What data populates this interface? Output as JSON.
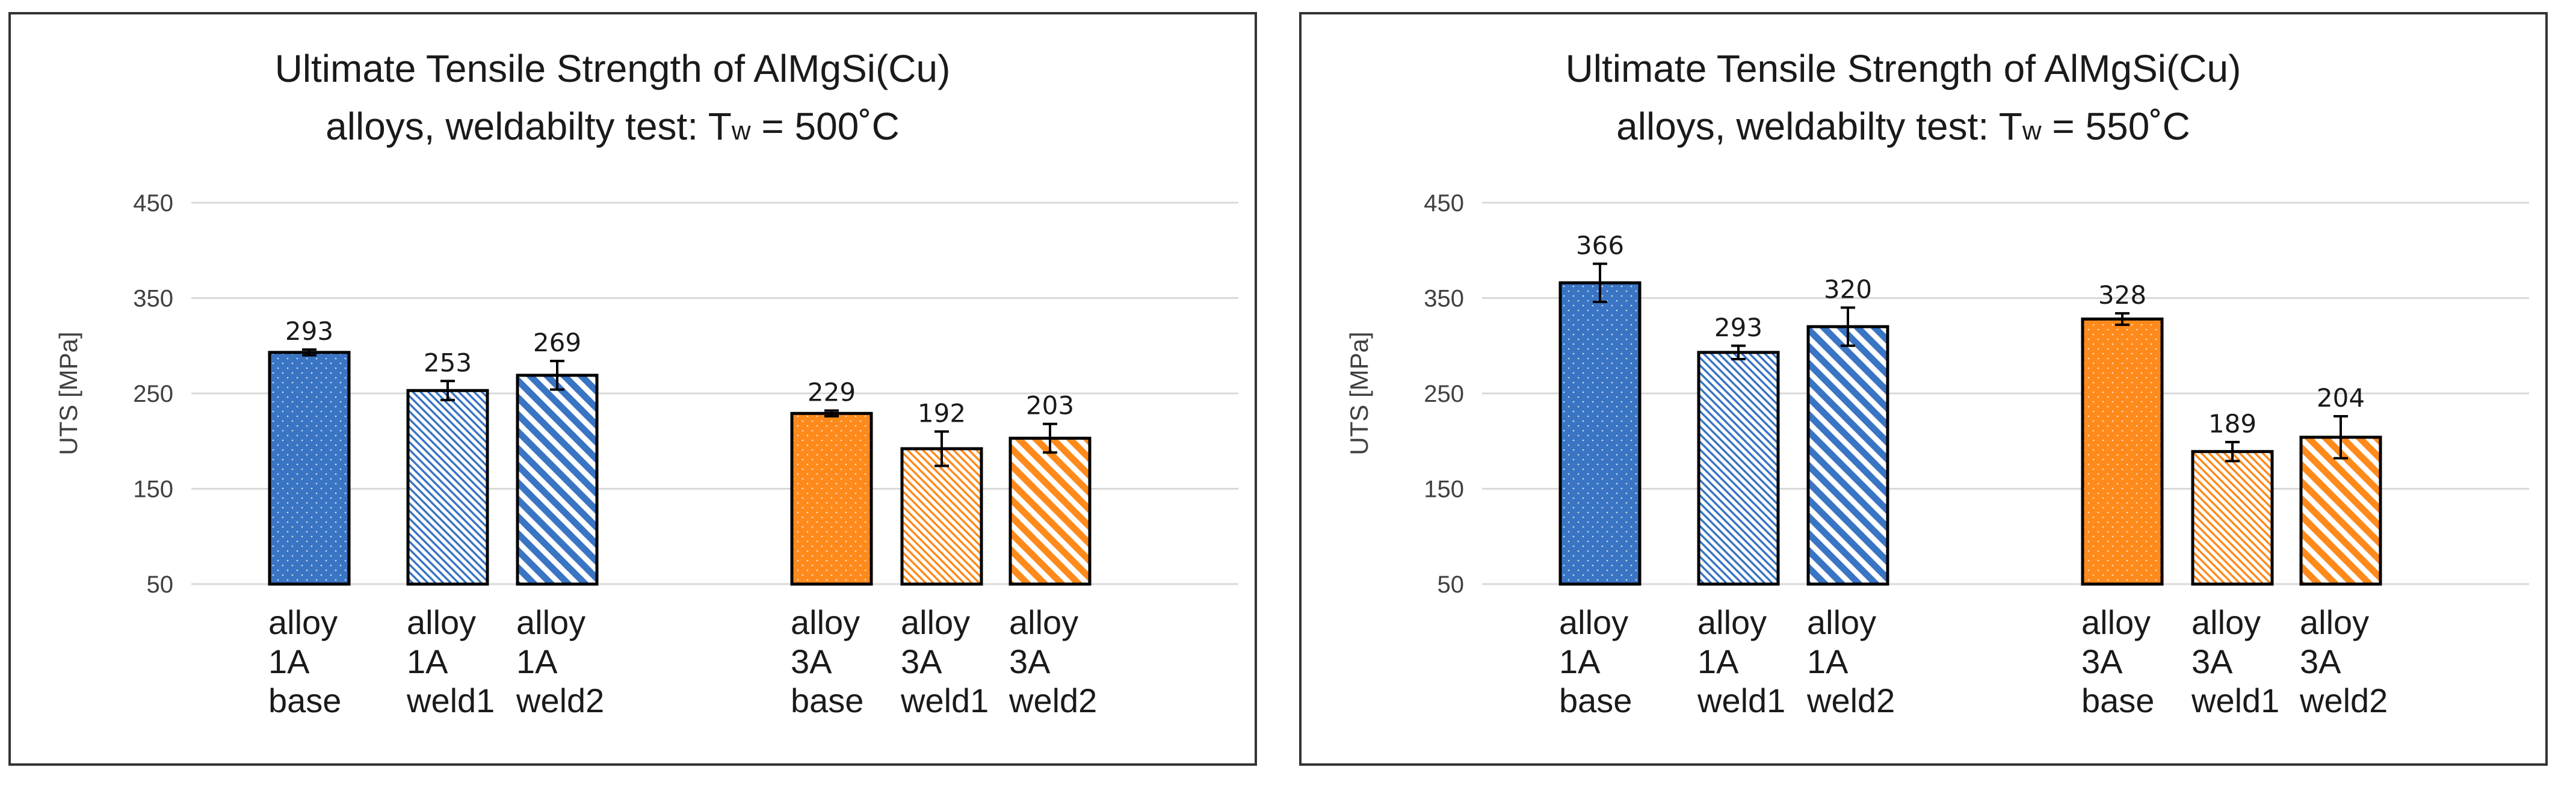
{
  "colors": {
    "blue": "#3a75c4",
    "orange": "#ff8a1c",
    "grid": "#d9d9d9",
    "edge": "#000000"
  },
  "chart_data": [
    {
      "type": "bar",
      "title_lines": [
        "Ultimate Tensile Strength of AlMgSi(Cu)",
        "alloys, weldabilty test: Tw = 500˚C"
      ],
      "title_line2_parts": [
        "alloys, weldabilty test: T",
        "w",
        " = 500˚C"
      ],
      "ylabel": "UTS [MPa]",
      "ylim": [
        50,
        450
      ],
      "yticks": [
        "50",
        "150",
        "250",
        "350",
        "450"
      ],
      "grid": true,
      "categories": [
        [
          "alloy",
          "1A",
          "base"
        ],
        [
          "alloy",
          "1A",
          "weld1"
        ],
        [
          "alloy",
          "1A",
          "weld2"
        ],
        [
          "alloy",
          "3A",
          "base"
        ],
        [
          "alloy",
          "3A",
          "weld1"
        ],
        [
          "alloy",
          "3A",
          "weld2"
        ]
      ],
      "values": [
        293,
        253,
        269,
        229,
        192,
        203
      ],
      "errors": [
        3,
        10,
        15,
        3,
        18,
        15
      ],
      "labels": [
        "293",
        "253",
        "269",
        "229",
        "192",
        "203"
      ],
      "series": [
        "blue",
        "blue",
        "blue",
        "orange",
        "orange",
        "orange"
      ],
      "patterns": [
        "dots",
        "hatch-fine",
        "hatch-wide",
        "dots",
        "hatch-fine",
        "hatch-wide"
      ]
    },
    {
      "type": "bar",
      "title_lines": [
        "Ultimate Tensile Strength of AlMgSi(Cu)",
        "alloys, weldabilty test: Tw = 550˚C"
      ],
      "title_line2_parts": [
        "alloys, weldabilty test: T",
        "w",
        " = 550˚C"
      ],
      "ylabel": "UTS [MPa]",
      "ylim": [
        50,
        450
      ],
      "yticks": [
        "50",
        "150",
        "250",
        "350",
        "450"
      ],
      "grid": true,
      "categories": [
        [
          "alloy",
          "1A",
          "base"
        ],
        [
          "alloy",
          "1A",
          "weld1"
        ],
        [
          "alloy",
          "1A",
          "weld2"
        ],
        [
          "alloy",
          "3A",
          "base"
        ],
        [
          "alloy",
          "3A",
          "weld1"
        ],
        [
          "alloy",
          "3A",
          "weld2"
        ]
      ],
      "values": [
        366,
        293,
        320,
        328,
        189,
        204
      ],
      "errors": [
        20,
        7,
        20,
        6,
        10,
        22
      ],
      "labels": [
        "366",
        "293",
        "320",
        "328",
        "189",
        "204"
      ],
      "series": [
        "blue",
        "blue",
        "blue",
        "orange",
        "orange",
        "orange"
      ],
      "patterns": [
        "dots",
        "hatch-fine",
        "hatch-wide",
        "dots",
        "hatch-fine",
        "hatch-wide"
      ]
    }
  ]
}
